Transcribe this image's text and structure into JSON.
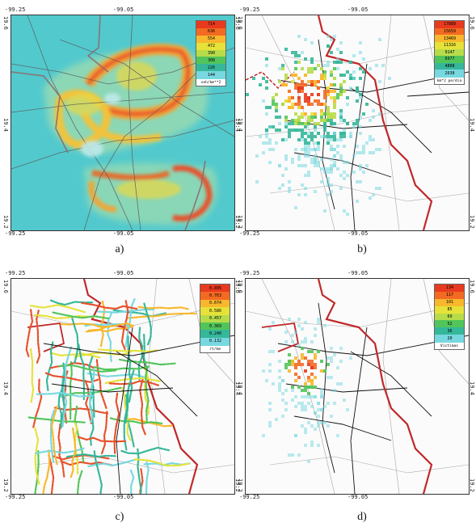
{
  "panels": [
    {
      "caption": "a)",
      "corners": {
        "top_left": "-99.25",
        "top_right": "-99.05",
        "bottom_left": "-99.25",
        "bottom_right": "-99.05",
        "left_top": "19.6",
        "left_mid": "19.4",
        "left_bot": "19.2",
        "right_top": "19.6",
        "right_mid": "19.4",
        "right_bot": "19.2"
      },
      "legend": {
        "values": [
          "714",
          "636",
          "554",
          "472",
          "390",
          "308",
          "226",
          "144"
        ],
        "unit": "veh/km**2",
        "colors": [
          "#e83a1e",
          "#f36a22",
          "#f8b72c",
          "#e6e23a",
          "#b7dc4a",
          "#52c55a",
          "#35b79a",
          "#78d8e0"
        ]
      }
    },
    {
      "caption": "b)",
      "corners": {
        "top_left": "-99.25",
        "top_right": "-99.05",
        "bottom_left": "-99.25",
        "bottom_right": "-99.05",
        "left_top": "19.6",
        "left_mid": "19.4",
        "left_bot": "19.2",
        "right_top": "19.6",
        "right_mid": "19.4",
        "right_bot": "19.2"
      },
      "legend": {
        "values": [
          "17889",
          "15659",
          "13469",
          "11316",
          "9147",
          "6977",
          "4808",
          "2638"
        ],
        "unit": "km*2 pe/dia",
        "colors": [
          "#e83a1e",
          "#f36a22",
          "#f8b72c",
          "#e6e23a",
          "#b7dc4a",
          "#52c55a",
          "#35b79a",
          "#78d8e0"
        ]
      }
    },
    {
      "caption": "c)",
      "corners": {
        "top_left": "-99.25",
        "top_right": "-99.05",
        "bottom_left": "-99.25",
        "bottom_right": "-99.05",
        "left_top": "19.6",
        "left_mid": "19.4",
        "left_bot": "19.2",
        "right_top": "19.6",
        "right_mid": "19.4",
        "right_bot": "19.2"
      },
      "legend": {
        "values": [
          "0.895",
          "0.763",
          "0.674",
          "0.586",
          "0.457",
          "0.369",
          "0.240",
          "0.132"
        ],
        "unit": "rt/km",
        "colors": [
          "#e83a1e",
          "#f36a22",
          "#f8b72c",
          "#e6e23a",
          "#b7dc4a",
          "#52c55a",
          "#35b79a",
          "#78d8e0"
        ]
      }
    },
    {
      "caption": "d)",
      "corners": {
        "top_left": "-99.25",
        "top_right": "-99.05",
        "bottom_left": "-99.25",
        "bottom_right": "-99.05",
        "left_top": "19.6",
        "left_mid": "19.4",
        "left_bot": "19.2",
        "right_top": "19.6",
        "right_mid": "19.4",
        "right_bot": "19.2"
      },
      "legend": {
        "values": [
          "134",
          "117",
          "101",
          "85",
          "69",
          "52",
          "36",
          "20"
        ],
        "unit": "Victimas",
        "colors": [
          "#e83a1e",
          "#f36a22",
          "#f8b72c",
          "#e6e23a",
          "#b7dc4a",
          "#52c55a",
          "#35b79a",
          "#78d8e0"
        ]
      }
    }
  ],
  "colors": {
    "border_red": "#c0282a",
    "roads": "#222222",
    "roads_gray": "#8a8a8a",
    "place_label": "#c98a77"
  }
}
